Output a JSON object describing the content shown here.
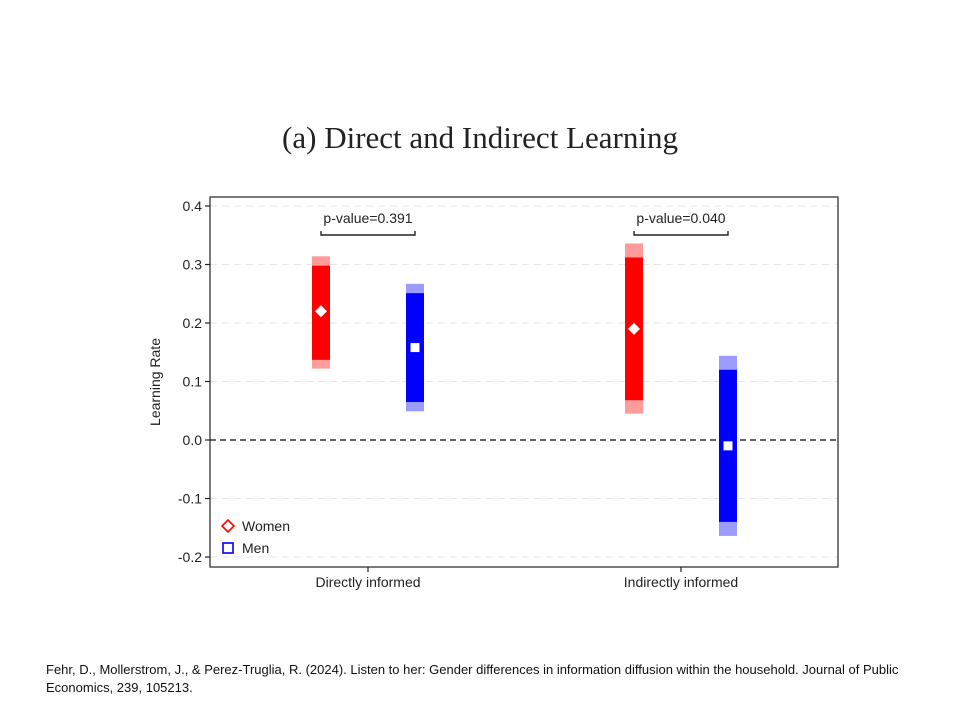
{
  "colors": {
    "women_dark": "#ff0000",
    "women_light": "#ff9b9b",
    "men_dark": "#0000ff",
    "men_light": "#9c9cff",
    "axis": "#222222",
    "grid": "#e6e6e6"
  },
  "chart_data": {
    "type": "range",
    "title": "(a) Direct and Indirect Learning",
    "xlabel": "",
    "ylabel": "Learning Rate",
    "ylim": [
      -0.22,
      0.41
    ],
    "yticks": [
      0.4,
      0.3,
      0.2,
      0.1,
      0.0,
      -0.1,
      -0.2
    ],
    "ytick_labels": [
      "0.4",
      "0.3",
      "0.2",
      "0.1",
      "0.0",
      "-0.1",
      "-0.2"
    ],
    "grid": true,
    "zero_line": "dashed",
    "categories": [
      "Directly informed",
      "Indirectly informed"
    ],
    "legend": {
      "position": "bottom-left",
      "entries": [
        "Women",
        "Men"
      ]
    },
    "series": [
      {
        "name": "Women",
        "marker": "diamond",
        "estimates": [
          0.22,
          0.19
        ],
        "ci90": [
          [
            0.137,
            0.298
          ],
          [
            0.068,
            0.312
          ]
        ],
        "ci95": [
          [
            0.122,
            0.314
          ],
          [
            0.045,
            0.336
          ]
        ]
      },
      {
        "name": "Men",
        "marker": "square",
        "estimates": [
          0.158,
          -0.01
        ],
        "ci90": [
          [
            0.065,
            0.251
          ],
          [
            -0.14,
            0.12
          ]
        ],
        "ci95": [
          [
            0.049,
            0.267
          ],
          [
            -0.164,
            0.144
          ]
        ]
      }
    ],
    "annotations": [
      "p-value=0.391",
      "p-value=0.040"
    ]
  },
  "citation": "Fehr, D., Mollerstrom, J., & Perez-Truglia, R. (2024). Listen to her: Gender differences in information diffusion within the household. Journal of Public Economics, 239, 105213."
}
